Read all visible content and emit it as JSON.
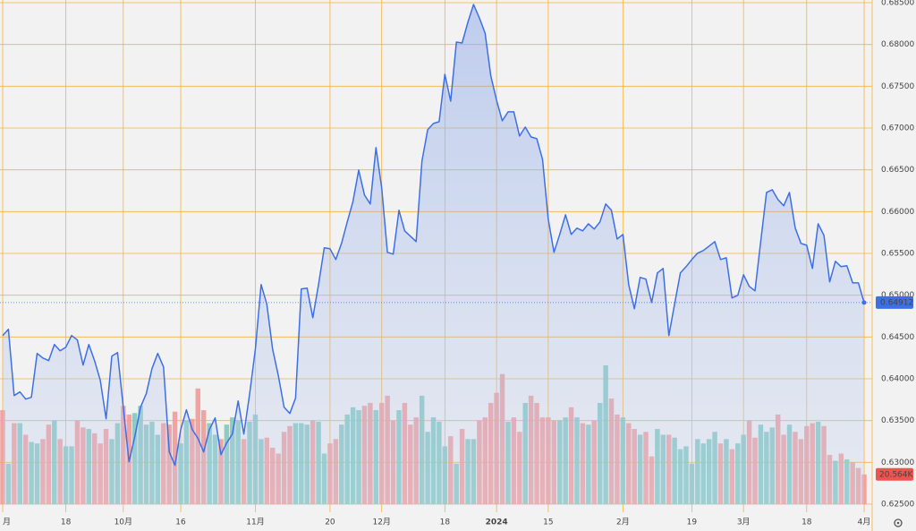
{
  "chart_data": [
    {
      "type": "line",
      "categories": [
        "月",
        null,
        null,
        null,
        null,
        null,
        null,
        null,
        null,
        null,
        null,
        "18",
        null,
        null,
        null,
        null,
        null,
        null,
        null,
        null,
        null,
        "10月",
        null,
        null,
        null,
        null,
        null,
        null,
        null,
        null,
        null,
        "16",
        null,
        null,
        null,
        null,
        null,
        null,
        null,
        null,
        null,
        null,
        null,
        null,
        "11月",
        null,
        null,
        null,
        null,
        null,
        null,
        null,
        null,
        null,
        null,
        null,
        null,
        "20",
        null,
        null,
        null,
        null,
        null,
        null,
        null,
        null,
        "12月",
        null,
        null,
        null,
        null,
        null,
        null,
        null,
        null,
        null,
        null,
        "18",
        null,
        null,
        null,
        null,
        null,
        null,
        null,
        null,
        "2024",
        null,
        null,
        null,
        null,
        null,
        null,
        null,
        null,
        "15",
        null,
        null,
        null,
        null,
        null,
        null,
        null,
        null,
        null,
        null,
        null,
        null,
        "2月",
        null,
        null,
        null,
        null,
        null,
        null,
        null,
        null,
        null,
        null,
        null,
        "19",
        null,
        null,
        null,
        null,
        null,
        null,
        null,
        null,
        "3月",
        null,
        null,
        null,
        null,
        null,
        null,
        null,
        null,
        null,
        null,
        "18",
        null,
        null,
        null,
        null,
        null,
        null,
        null,
        null,
        null,
        "4月"
      ],
      "series": [
        {
          "color": "#3d6fe6",
          "values": [
            0.64517,
            0.64592,
            0.638,
            0.63843,
            0.63757,
            0.63778,
            0.64303,
            0.64249,
            0.64217,
            0.6441,
            0.64335,
            0.64378,
            0.64517,
            0.64464,
            0.64164,
            0.6441,
            0.64217,
            0.63982,
            0.63521,
            0.64271,
            0.64314,
            0.6366,
            0.63007,
            0.63307,
            0.6366,
            0.63821,
            0.64121,
            0.64303,
            0.64142,
            0.63125,
            0.62964,
            0.63393,
            0.63628,
            0.63393,
            0.63286,
            0.63125,
            0.63393,
            0.63532,
            0.63093,
            0.63232,
            0.63339,
            0.63735,
            0.63339,
            0.63821,
            0.64357,
            0.65127,
            0.64892,
            0.64357,
            0.64035,
            0.6366,
            0.63585,
            0.63768,
            0.65074,
            0.65084,
            0.64731,
            0.65127,
            0.65566,
            0.65556,
            0.65427,
            0.6562,
            0.65877,
            0.66123,
            0.66498,
            0.66198,
            0.66091,
            0.66765,
            0.66284,
            0.65513,
            0.65491,
            0.66016,
            0.6577,
            0.65706,
            0.65641,
            0.66605,
            0.6698,
            0.67055,
            0.67076,
            0.67643,
            0.67322,
            0.68029,
            0.68018,
            0.68264,
            0.68479,
            0.68318,
            0.68136,
            0.67622,
            0.67333,
            0.67087,
            0.67194,
            0.67194,
            0.66905,
            0.67012,
            0.66894,
            0.66873,
            0.66626,
            0.65909,
            0.65513,
            0.65727,
            0.65962,
            0.65727,
            0.65802,
            0.6577,
            0.65855,
            0.65791,
            0.65877,
            0.66091,
            0.66016,
            0.65673,
            0.65727,
            0.65127,
            0.64838,
            0.65213,
            0.65192,
            0.64913,
            0.65266,
            0.6532,
            0.64517,
            0.64892,
            0.65266,
            0.65341,
            0.65427,
            0.65502,
            0.65534,
            0.65588,
            0.65641,
            0.65427,
            0.65448,
            0.64967,
            0.64999,
            0.65245,
            0.65106,
            0.65052,
            0.65641,
            0.6623,
            0.66262,
            0.66144,
            0.6607,
            0.6623,
            0.65802,
            0.6562,
            0.65598,
            0.6532,
            0.65855,
            0.65716,
            0.65159,
            0.65406,
            0.65341,
            0.65352,
            0.65148,
            0.65148,
            0.64912
          ]
        }
      ],
      "ylim": [
        0.625,
        0.685
      ],
      "yticks": [
        {
          "value": 0.625,
          "label": "0.62500"
        },
        {
          "value": 0.63,
          "label": "0.63000"
        },
        {
          "value": 0.635,
          "label": "0.63500"
        },
        {
          "value": 0.64,
          "label": "0.64000"
        },
        {
          "value": 0.645,
          "label": "0.64500"
        },
        {
          "value": 0.65,
          "label": "0.65000"
        },
        {
          "value": 0.655,
          "label": "0.65500"
        },
        {
          "value": 0.66,
          "label": "0.66000"
        },
        {
          "value": 0.665,
          "label": "0.66500"
        },
        {
          "value": 0.67,
          "label": "0.67000"
        },
        {
          "value": 0.675,
          "label": "0.67500"
        },
        {
          "value": 0.68,
          "label": "0.68000"
        },
        {
          "value": 0.685,
          "label": "0.68500"
        }
      ],
      "grid": true
    },
    {
      "type": "bar",
      "up_color": "#7fc8bf",
      "down_color": "#f19a98",
      "values": [
        65,
        28,
        56,
        56,
        48,
        43,
        42,
        45,
        55,
        58,
        45,
        40,
        40,
        58,
        53,
        52,
        49,
        42,
        52,
        45,
        56,
        68,
        62,
        63,
        68,
        55,
        57,
        48,
        56,
        55,
        64,
        42,
        58,
        59,
        80,
        65,
        56,
        48,
        45,
        55,
        60,
        58,
        45,
        57,
        62,
        45,
        46,
        39,
        35,
        50,
        54,
        56,
        56,
        55,
        58,
        57,
        35,
        42,
        45,
        55,
        62,
        67,
        65,
        68,
        70,
        65,
        70,
        75,
        58,
        65,
        70,
        55,
        60,
        75,
        50,
        60,
        57,
        40,
        47,
        28,
        52,
        45,
        45,
        58,
        60,
        70,
        77,
        90,
        57,
        60,
        50,
        70,
        75,
        70,
        60,
        60,
        58,
        58,
        60,
        67,
        60,
        56,
        55,
        58,
        70,
        96,
        73,
        62,
        60,
        56,
        52,
        48,
        50,
        33,
        52,
        48,
        48,
        46,
        38,
        40,
        28,
        45,
        42,
        45,
        50,
        42,
        45,
        38,
        42,
        48,
        58,
        46,
        55,
        50,
        53,
        62,
        48,
        55,
        50,
        45,
        54,
        56,
        57,
        54,
        34,
        30,
        35,
        31,
        29,
        25,
        20.564
      ],
      "value_labels": [
        null,
        null,
        null,
        null,
        null,
        null,
        null,
        null,
        null,
        null,
        null,
        null,
        null,
        null,
        null,
        null,
        null,
        null,
        null,
        null,
        null,
        null,
        null,
        null,
        null,
        null,
        null,
        null,
        null,
        null,
        null,
        null,
        null,
        null,
        null,
        null,
        null,
        null,
        null,
        null,
        null,
        null,
        null,
        null,
        null,
        null,
        null,
        null,
        null,
        null,
        null,
        null,
        null,
        null,
        null,
        null,
        null,
        null,
        null,
        null,
        null,
        null,
        null,
        null,
        null,
        null,
        null,
        null,
        null,
        null,
        null,
        null,
        null,
        null,
        null,
        null,
        null,
        null,
        null,
        null,
        null,
        null,
        null,
        null,
        null,
        null,
        null,
        null,
        null,
        null,
        null,
        null,
        null,
        null,
        null,
        null,
        null,
        null,
        null,
        null,
        null,
        null,
        null,
        null,
        null,
        null,
        null,
        null,
        null,
        null,
        null,
        null,
        null,
        null,
        null,
        null,
        null,
        null,
        null,
        null,
        null,
        null,
        null,
        null,
        null,
        null,
        null,
        null,
        null,
        null,
        null,
        null,
        null,
        null,
        null,
        null,
        null,
        null,
        null,
        null,
        null,
        null,
        null,
        null,
        null,
        null,
        null,
        null,
        null,
        null,
        "20.564K"
      ]
    }
  ]
}
